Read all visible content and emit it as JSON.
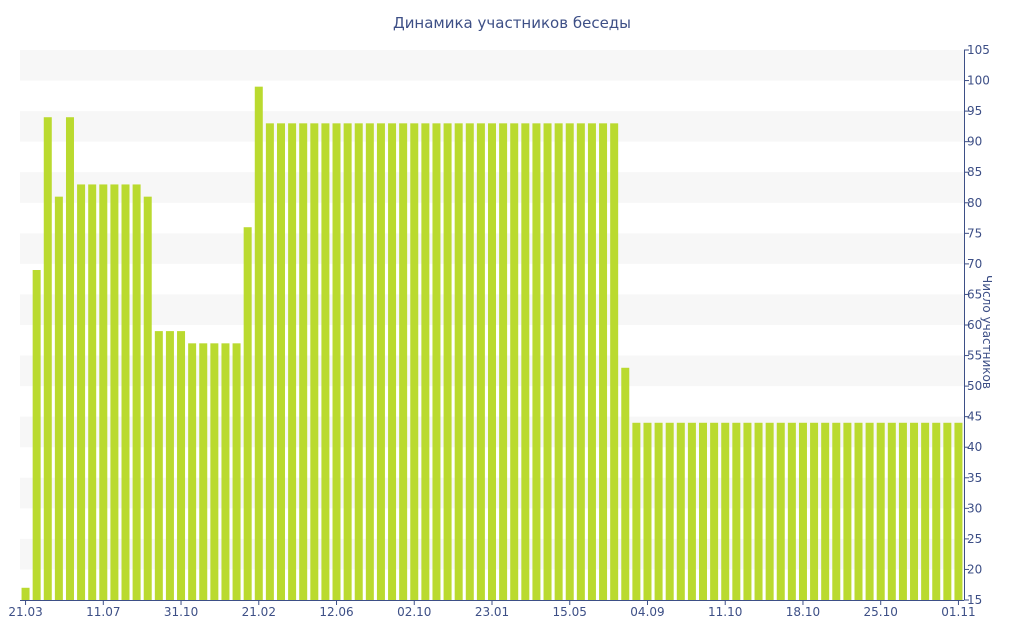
{
  "chart_data": {
    "type": "bar",
    "title": "Динамика участников беседы",
    "xlabel": "",
    "ylabel": "Число участников",
    "ylim": [
      15,
      105
    ],
    "y_ticks": [
      15,
      20,
      25,
      30,
      35,
      40,
      45,
      50,
      55,
      60,
      65,
      70,
      75,
      80,
      85,
      90,
      95,
      100,
      105
    ],
    "y_axis_position": "right",
    "x_tick_labels": [
      "21.03",
      "11.07",
      "31.10",
      "21.02",
      "12.06",
      "02.10",
      "23.01",
      "15.05",
      "04.09",
      "11.10",
      "18.10",
      "25.10",
      "01.11"
    ],
    "x_tick_bar_index": [
      0,
      7,
      14,
      21,
      28,
      35,
      42,
      49,
      56,
      63,
      70,
      77,
      84
    ],
    "bar_color": "#bada2f",
    "values": [
      17,
      69,
      94,
      81,
      94,
      83,
      83,
      83,
      83,
      83,
      83,
      81,
      59,
      59,
      59,
      57,
      57,
      57,
      57,
      57,
      76,
      99,
      93,
      93,
      93,
      93,
      93,
      93,
      93,
      93,
      93,
      93,
      93,
      93,
      93,
      93,
      93,
      93,
      93,
      93,
      93,
      93,
      93,
      93,
      93,
      93,
      93,
      93,
      93,
      93,
      93,
      93,
      93,
      93,
      53,
      44,
      44,
      44,
      44,
      44,
      44,
      44,
      44,
      44,
      44,
      44,
      44,
      44,
      44,
      44,
      44,
      44,
      44,
      44,
      44,
      44,
      44,
      44,
      44,
      44,
      44,
      44,
      44,
      44,
      44
    ]
  }
}
